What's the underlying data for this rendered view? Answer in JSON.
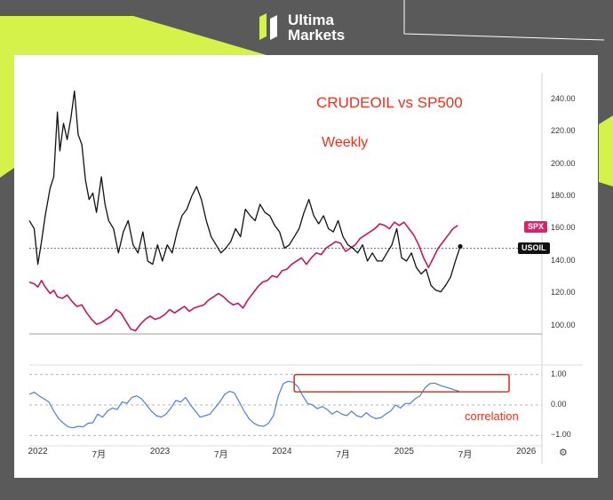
{
  "brand": {
    "name_line1": "Ultima",
    "name_line2": "Markets"
  },
  "annotations": {
    "title": "CRUDEOIL vs SP500",
    "subtitle": "Weekly",
    "correlation_label": "correlation"
  },
  "labels": {
    "spx_tag": "SPX",
    "usoil_tag": "USOIL",
    "settings_icon": "⚙"
  },
  "colors": {
    "crude": "#111111",
    "spx": "#c2185b",
    "correlation": "#4a7fd6",
    "highlight_box": "#e8321e",
    "accent": "#d4f24a"
  },
  "chart_data": [
    {
      "type": "line",
      "x_ticks": [
        "2022",
        "7月",
        "2023",
        "7月",
        "2024",
        "7月",
        "2025",
        "7月",
        "2026"
      ],
      "x_tick_times": [
        2022.0,
        2022.5,
        2023.0,
        2023.5,
        2024.0,
        2024.5,
        2025.0,
        2025.5,
        2026.0
      ],
      "xlim": [
        2021.93,
        2026.1
      ],
      "y_ticks": [
        "240.00",
        "220.00",
        "200.00",
        "180.00",
        "160.00",
        "140.00",
        "120.00",
        "100.00"
      ],
      "ylim": [
        95,
        248
      ],
      "reference_line": 148,
      "series": [
        {
          "name": "USOIL",
          "t": [
            2021.93,
            2021.97,
            2022.0,
            2022.03,
            2022.06,
            2022.1,
            2022.13,
            2022.16,
            2022.18,
            2022.21,
            2022.24,
            2022.27,
            2022.3,
            2022.33,
            2022.36,
            2022.39,
            2022.42,
            2022.45,
            2022.48,
            2022.52,
            2022.55,
            2022.58,
            2022.62,
            2022.66,
            2022.7,
            2022.74,
            2022.78,
            2022.82,
            2022.86,
            2022.9,
            2022.94,
            2022.98,
            2023.02,
            2023.06,
            2023.1,
            2023.14,
            2023.18,
            2023.22,
            2023.26,
            2023.3,
            2023.34,
            2023.38,
            2023.42,
            2023.46,
            2023.5,
            2023.54,
            2023.58,
            2023.62,
            2023.66,
            2023.7,
            2023.74,
            2023.78,
            2023.82,
            2023.86,
            2023.9,
            2023.94,
            2023.98,
            2024.02,
            2024.06,
            2024.1,
            2024.14,
            2024.18,
            2024.22,
            2024.26,
            2024.3,
            2024.34,
            2024.38,
            2024.42,
            2024.46,
            2024.5,
            2024.54,
            2024.58,
            2024.62,
            2024.66,
            2024.7,
            2024.74,
            2024.78,
            2024.82,
            2024.86,
            2024.9,
            2024.94,
            2024.98,
            2025.02,
            2025.06,
            2025.1,
            2025.14,
            2025.18,
            2025.22,
            2025.26,
            2025.3,
            2025.34,
            2025.38,
            2025.42,
            2025.46
          ],
          "y": [
            165,
            160,
            138,
            152,
            168,
            185,
            192,
            232,
            208,
            225,
            215,
            228,
            245,
            218,
            212,
            190,
            178,
            182,
            170,
            192,
            175,
            165,
            160,
            145,
            158,
            165,
            150,
            145,
            158,
            140,
            138,
            150,
            140,
            150,
            145,
            158,
            168,
            172,
            180,
            186,
            178,
            165,
            155,
            150,
            145,
            148,
            152,
            160,
            155,
            172,
            168,
            165,
            175,
            170,
            168,
            162,
            158,
            148,
            150,
            155,
            160,
            170,
            178,
            168,
            163,
            168,
            160,
            158,
            165,
            155,
            150,
            148,
            145,
            150,
            140,
            145,
            140,
            140,
            145,
            150,
            160,
            142,
            140,
            145,
            136,
            132,
            135,
            125,
            122,
            121,
            125,
            130,
            140,
            149
          ]
        },
        {
          "name": "SPX",
          "t": [
            2021.93,
            2021.97,
            2022.0,
            2022.03,
            2022.06,
            2022.1,
            2022.13,
            2022.16,
            2022.2,
            2022.24,
            2022.28,
            2022.32,
            2022.36,
            2022.4,
            2022.44,
            2022.48,
            2022.52,
            2022.56,
            2022.6,
            2022.64,
            2022.68,
            2022.72,
            2022.76,
            2022.8,
            2022.84,
            2022.88,
            2022.92,
            2022.96,
            2023.0,
            2023.04,
            2023.08,
            2023.12,
            2023.16,
            2023.2,
            2023.24,
            2023.28,
            2023.32,
            2023.36,
            2023.4,
            2023.44,
            2023.48,
            2023.52,
            2023.56,
            2023.6,
            2023.64,
            2023.68,
            2023.72,
            2023.76,
            2023.8,
            2023.84,
            2023.88,
            2023.92,
            2023.96,
            2024.0,
            2024.04,
            2024.08,
            2024.12,
            2024.16,
            2024.2,
            2024.24,
            2024.28,
            2024.32,
            2024.36,
            2024.4,
            2024.44,
            2024.48,
            2024.52,
            2024.56,
            2024.6,
            2024.64,
            2024.68,
            2024.72,
            2024.76,
            2024.8,
            2024.84,
            2024.88,
            2024.92,
            2024.96,
            2025.0,
            2025.04,
            2025.08,
            2025.12,
            2025.16,
            2025.2,
            2025.24,
            2025.28,
            2025.32,
            2025.36,
            2025.4,
            2025.44
          ],
          "y": [
            127,
            126,
            124,
            128,
            124,
            120,
            122,
            118,
            117,
            119,
            115,
            112,
            113,
            108,
            104,
            101,
            102,
            104,
            106,
            110,
            108,
            103,
            98,
            97,
            101,
            104,
            106,
            104,
            105,
            107,
            110,
            108,
            110,
            112,
            109,
            111,
            112,
            113,
            116,
            118,
            120,
            118,
            115,
            113,
            114,
            111,
            116,
            120,
            124,
            127,
            128,
            131,
            130,
            134,
            135,
            138,
            140,
            142,
            138,
            142,
            145,
            144,
            148,
            150,
            152,
            151,
            146,
            148,
            150,
            154,
            156,
            158,
            160,
            163,
            162,
            160,
            164,
            162,
            164,
            160,
            156,
            150,
            142,
            136,
            142,
            148,
            152,
            156,
            160,
            162
          ]
        }
      ]
    },
    {
      "type": "line",
      "x_ticks": [
        "2022",
        "7月",
        "2023",
        "7月",
        "2024",
        "7月",
        "2025",
        "7月",
        "2026"
      ],
      "xlim": [
        2021.93,
        2026.1
      ],
      "y_ticks": [
        "1.00",
        "0.00",
        "−1.00"
      ],
      "ylim": [
        -1.05,
        1.05
      ],
      "series": [
        {
          "name": "correlation",
          "t": [
            2021.93,
            2021.97,
            2022.01,
            2022.05,
            2022.09,
            2022.13,
            2022.17,
            2022.21,
            2022.25,
            2022.29,
            2022.33,
            2022.37,
            2022.41,
            2022.45,
            2022.49,
            2022.53,
            2022.57,
            2022.61,
            2022.65,
            2022.69,
            2022.73,
            2022.77,
            2022.81,
            2022.85,
            2022.89,
            2022.93,
            2022.97,
            2023.01,
            2023.05,
            2023.09,
            2023.13,
            2023.17,
            2023.21,
            2023.25,
            2023.29,
            2023.33,
            2023.37,
            2023.41,
            2023.45,
            2023.49,
            2023.53,
            2023.57,
            2023.61,
            2023.65,
            2023.69,
            2023.73,
            2023.77,
            2023.81,
            2023.85,
            2023.89,
            2023.93,
            2023.97,
            2024.01,
            2024.05,
            2024.09,
            2024.13,
            2024.17,
            2024.21,
            2024.25,
            2024.29,
            2024.33,
            2024.37,
            2024.41,
            2024.45,
            2024.49,
            2024.53,
            2024.57,
            2024.61,
            2024.65,
            2024.69,
            2024.73,
            2024.77,
            2024.81,
            2024.85,
            2024.89,
            2024.93,
            2024.97,
            2025.01,
            2025.05,
            2025.09,
            2025.13,
            2025.17,
            2025.21,
            2025.25,
            2025.29,
            2025.33,
            2025.37,
            2025.41,
            2025.45
          ],
          "y": [
            0.35,
            0.42,
            0.3,
            0.2,
            0.1,
            -0.2,
            -0.45,
            -0.6,
            -0.72,
            -0.75,
            -0.7,
            -0.72,
            -0.6,
            -0.58,
            -0.3,
            -0.4,
            -0.2,
            -0.1,
            -0.15,
            0.1,
            0.05,
            0.25,
            0.3,
            0.2,
            0.0,
            -0.2,
            -0.35,
            -0.4,
            -0.3,
            -0.1,
            0.15,
            0.1,
            0.25,
            0.0,
            -0.2,
            -0.4,
            -0.35,
            -0.3,
            -0.1,
            0.1,
            0.35,
            0.45,
            0.4,
            0.1,
            -0.2,
            -0.45,
            -0.6,
            -0.68,
            -0.7,
            -0.6,
            -0.35,
            0.3,
            0.7,
            0.78,
            0.75,
            0.6,
            0.3,
            0.05,
            0.0,
            -0.12,
            -0.05,
            -0.15,
            -0.3,
            -0.2,
            -0.3,
            -0.35,
            -0.2,
            -0.35,
            -0.4,
            -0.25,
            -0.38,
            -0.45,
            -0.42,
            -0.3,
            -0.2,
            0.0,
            -0.1,
            0.05,
            0.05,
            0.2,
            0.3,
            0.55,
            0.7,
            0.72,
            0.65,
            0.6,
            0.55,
            0.5,
            0.45
          ]
        }
      ],
      "annotation_box": {
        "t": [
          2024.1,
          2025.86
        ],
        "y": [
          0.43,
          1.0
        ]
      }
    }
  ]
}
